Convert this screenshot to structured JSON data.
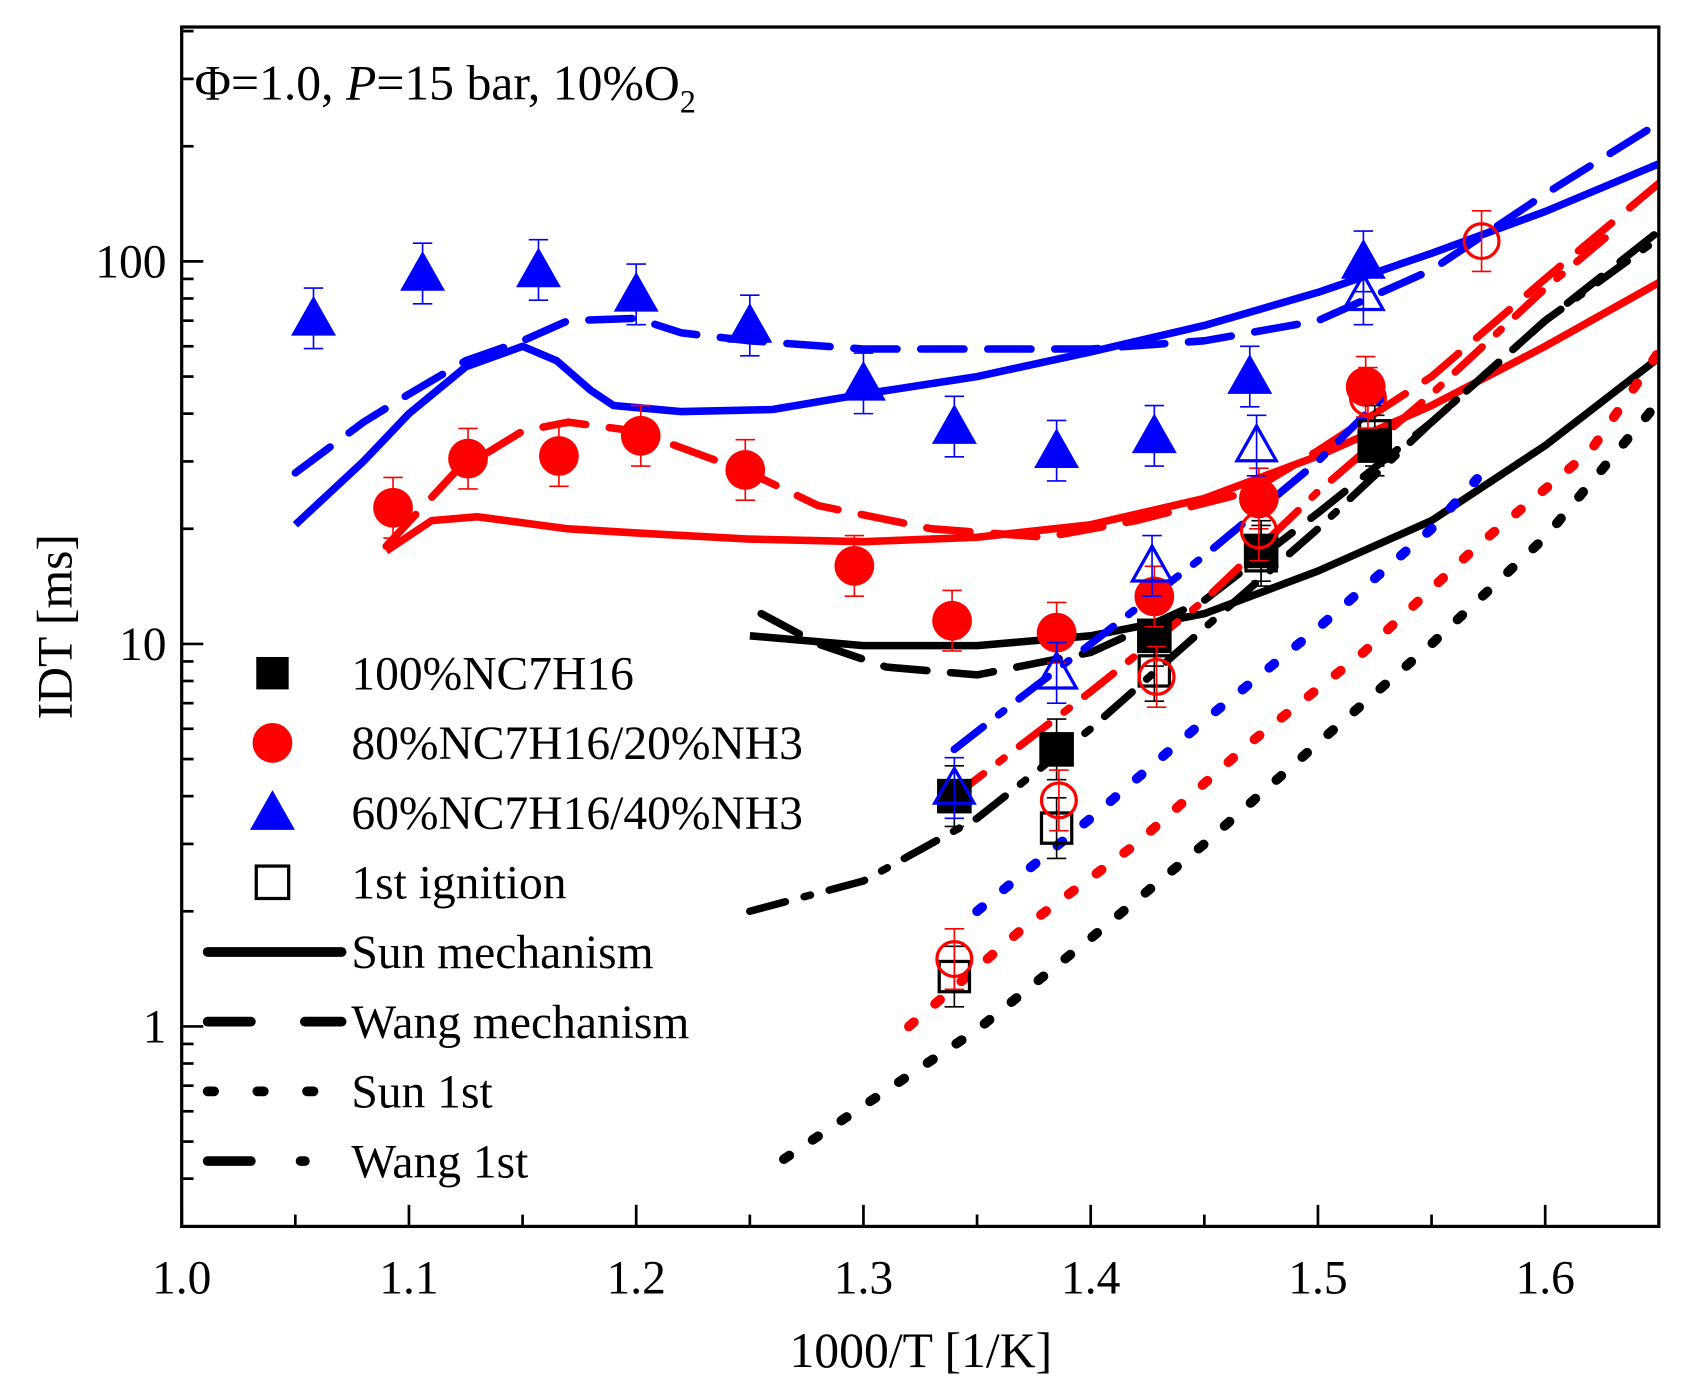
{
  "chart_data": {
    "type": "scatter",
    "annotation": {
      "phi": "Φ=1.0, ",
      "p_label": "P",
      "rest": "=15 bar, 10%O",
      "sub": "2"
    },
    "xlabel": "1000/T [1/K]",
    "ylabel": "IDT [ms]",
    "xlim": [
      1.0,
      1.65
    ],
    "ylim": [
      0.3,
      410
    ],
    "yscale": "log",
    "xticks": [
      "1.0",
      "1.1",
      "1.2",
      "1.3",
      "1.4",
      "1.5",
      "1.6"
    ],
    "yticks": [
      "1",
      "10",
      "100"
    ],
    "legend_position": "bottom-left",
    "legend": [
      {
        "label": "100%NC7H16",
        "marker": "square-filled",
        "color": "#000000"
      },
      {
        "label": "80%NC7H16/20%NH3",
        "marker": "circle-filled",
        "color": "#ff0000"
      },
      {
        "label": "60%NC7H16/40%NH3",
        "marker": "triangle-filled",
        "color": "#0000ff"
      },
      {
        "label": "1st ignition",
        "marker": "square-open",
        "color": "#000000"
      },
      {
        "label": "Sun mechanism",
        "line": "solid",
        "color": "#000000"
      },
      {
        "label": "Wang mechanism",
        "line": "dash",
        "color": "#000000"
      },
      {
        "label": "Sun 1st",
        "line": "dot",
        "color": "#000000"
      },
      {
        "label": "Wang 1st",
        "line": "dashdot",
        "color": "#000000"
      }
    ],
    "points": [
      {
        "name": "100%NC7H16",
        "marker": "square",
        "fill": true,
        "color": "#000000",
        "x": [
          1.34,
          1.385,
          1.428,
          1.475,
          1.525
        ],
        "y": [
          4.0,
          5.3,
          10.5,
          17.5,
          33
        ]
      },
      {
        "name": "80%NC7H16/20%NH3",
        "marker": "circle",
        "fill": true,
        "color": "#ff0000",
        "x": [
          1.093,
          1.126,
          1.166,
          1.202,
          1.248,
          1.296,
          1.339,
          1.385,
          1.428,
          1.474,
          1.521
        ],
        "y": [
          22.7,
          30.5,
          31,
          35,
          28.5,
          16,
          11.5,
          10.7,
          13.3,
          24,
          47
        ]
      },
      {
        "name": "60%NC7H16/40%NH3",
        "marker": "triangle",
        "fill": true,
        "color": "#0000ff",
        "x": [
          1.058,
          1.106,
          1.157,
          1.2,
          1.25,
          1.3,
          1.34,
          1.385,
          1.428,
          1.47,
          1.52
        ],
        "y": [
          71,
          93,
          95,
          82,
          68,
          48,
          37,
          32,
          35,
          50,
          100
        ]
      },
      {
        "name": "100%NC7H16 1st",
        "marker": "square",
        "fill": false,
        "color": "#000000",
        "x": [
          1.34,
          1.385,
          1.428,
          1.475,
          1.525
        ],
        "y": [
          1.35,
          3.3,
          8.5,
          17,
          35
        ]
      },
      {
        "name": "80%NC7H16/20%NH3 1st",
        "marker": "circle",
        "fill": false,
        "color": "#ff0000",
        "x": [
          1.34,
          1.386,
          1.429,
          1.474,
          1.522,
          1.572
        ],
        "y": [
          1.5,
          3.9,
          8.2,
          19.8,
          44,
          113
        ]
      },
      {
        "name": "60%NC7H16/40%NH3 1st",
        "marker": "triangle",
        "fill": false,
        "color": "#0000ff",
        "x": [
          1.34,
          1.385,
          1.427,
          1.473,
          1.52
        ],
        "y": [
          4.2,
          8.4,
          16,
          33,
          82
        ]
      }
    ],
    "lines": [
      {
        "name": "Sun 60/40",
        "style": "solid",
        "color": "#0000ff",
        "x": [
          1.05,
          1.08,
          1.1,
          1.125,
          1.15,
          1.165,
          1.18,
          1.19,
          1.22,
          1.26,
          1.3,
          1.35,
          1.4,
          1.45,
          1.5,
          1.55,
          1.6,
          1.65
        ],
        "y": [
          20.5,
          30,
          40,
          53,
          60,
          55,
          46,
          42,
          40.5,
          41,
          45,
          50,
          58,
          68,
          83,
          105,
          135,
          180
        ]
      },
      {
        "name": "Wang 60/40",
        "style": "dash",
        "color": "#0000ff",
        "x": [
          1.05,
          1.08,
          1.1,
          1.125,
          1.15,
          1.17,
          1.2,
          1.22,
          1.25,
          1.3,
          1.35,
          1.4,
          1.45,
          1.5,
          1.55,
          1.6,
          1.65
        ],
        "y": [
          28,
          38,
          45,
          55,
          62,
          70,
          71,
          65,
          62,
          59,
          59,
          59,
          62,
          70,
          95,
          150,
          230
        ]
      },
      {
        "name": "Sun 80/20",
        "style": "solid",
        "color": "#ff0000",
        "x": [
          1.09,
          1.11,
          1.13,
          1.17,
          1.2,
          1.25,
          1.3,
          1.35,
          1.4,
          1.45,
          1.5,
          1.55,
          1.6,
          1.65
        ],
        "y": [
          17.5,
          21,
          21.5,
          20,
          19.5,
          18.8,
          18.5,
          19,
          20.5,
          24,
          31,
          42,
          60,
          88
        ]
      },
      {
        "name": "Wang 80/20",
        "style": "dash",
        "color": "#ff0000",
        "x": [
          1.09,
          1.12,
          1.15,
          1.17,
          1.2,
          1.25,
          1.28,
          1.33,
          1.38,
          1.42,
          1.47,
          1.5,
          1.55,
          1.6,
          1.65
        ],
        "y": [
          18,
          28,
          36,
          38,
          36,
          28,
          23,
          20,
          19,
          21,
          25,
          32,
          50,
          90,
          160
        ]
      },
      {
        "name": "Sun 100",
        "style": "solid",
        "color": "#000000",
        "x": [
          1.25,
          1.3,
          1.35,
          1.4,
          1.45,
          1.5,
          1.55,
          1.6,
          1.65
        ],
        "y": [
          10.5,
          9.9,
          9.9,
          10.5,
          12,
          15.5,
          21,
          33,
          56
        ]
      },
      {
        "name": "Wang 100",
        "style": "dash",
        "color": "#000000",
        "x": [
          1.255,
          1.28,
          1.31,
          1.35,
          1.4,
          1.45,
          1.5,
          1.55,
          1.6,
          1.65
        ],
        "y": [
          12,
          10,
          8.7,
          8.3,
          9.5,
          13,
          22,
          38,
          70,
          120
        ]
      },
      {
        "name": "Wang 1st 100",
        "style": "dashdot",
        "color": "#000000",
        "x": [
          1.25,
          1.3,
          1.35,
          1.4,
          1.45,
          1.5,
          1.55,
          1.6,
          1.65
        ],
        "y": [
          2.0,
          2.4,
          3.5,
          6,
          11,
          20,
          38,
          70,
          115
        ]
      },
      {
        "name": "Wang 1st 80/20",
        "style": "dashdot",
        "color": "#ff0000",
        "x": [
          1.34,
          1.4,
          1.45,
          1.5,
          1.55,
          1.6,
          1.63
        ],
        "y": [
          4,
          7.5,
          13,
          25,
          45,
          85,
          120
        ]
      },
      {
        "name": "Wang 1st 60/40",
        "style": "dashdot",
        "color": "#0000ff",
        "x": [
          1.34,
          1.37,
          1.4,
          1.45,
          1.5,
          1.53
        ],
        "y": [
          5.3,
          7.3,
          10,
          17,
          30,
          45
        ]
      },
      {
        "name": "Sun 1st 100",
        "style": "dot",
        "color": "#000000",
        "x": [
          1.265,
          1.3,
          1.35,
          1.4,
          1.45,
          1.5,
          1.55,
          1.6,
          1.65
        ],
        "y": [
          0.45,
          0.62,
          0.98,
          1.7,
          3,
          5.5,
          10,
          19,
          43
        ]
      },
      {
        "name": "Sun 1st 80/20",
        "style": "dot",
        "color": "#ff0000",
        "x": [
          1.32,
          1.37,
          1.42,
          1.47,
          1.52,
          1.57,
          1.62,
          1.65
        ],
        "y": [
          1.0,
          1.8,
          3,
          5.5,
          9.5,
          18,
          32,
          58
        ]
      },
      {
        "name": "Sun 1st 60/40",
        "style": "dot",
        "color": "#0000ff",
        "x": [
          1.35,
          1.4,
          1.45,
          1.5,
          1.55,
          1.57
        ],
        "y": [
          2,
          3.5,
          6.3,
          11,
          20,
          27
        ]
      }
    ]
  }
}
